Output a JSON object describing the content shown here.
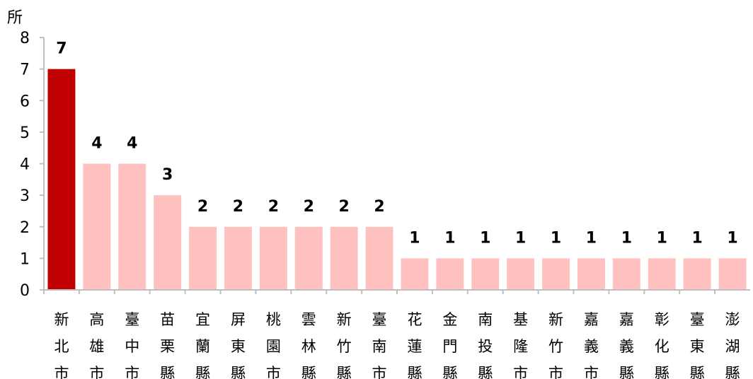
{
  "chart_data": {
    "type": "bar",
    "ylabel": "所",
    "ylim": [
      0,
      8
    ],
    "yticks": [
      0,
      1,
      2,
      3,
      4,
      5,
      6,
      7,
      8
    ],
    "grid": false,
    "legend": "none",
    "categories": [
      "新北市",
      "高雄市",
      "臺中市",
      "苗栗縣",
      "宜蘭縣",
      "屏東縣",
      "桃園市",
      "雲林縣",
      "新竹縣",
      "臺南市",
      "花蓮縣",
      "金門縣",
      "南投縣",
      "基隆市",
      "新竹市",
      "嘉義市",
      "嘉義縣",
      "彰化縣",
      "臺東縣",
      "澎湖縣"
    ],
    "values": [
      7,
      4,
      4,
      3,
      2,
      2,
      2,
      2,
      2,
      2,
      1,
      1,
      1,
      1,
      1,
      1,
      1,
      1,
      1,
      1
    ],
    "colors": {
      "highlight": "#c00000",
      "default": "#ffc0c0",
      "axis": "#bfbfbf"
    },
    "highlight_index": 0
  }
}
